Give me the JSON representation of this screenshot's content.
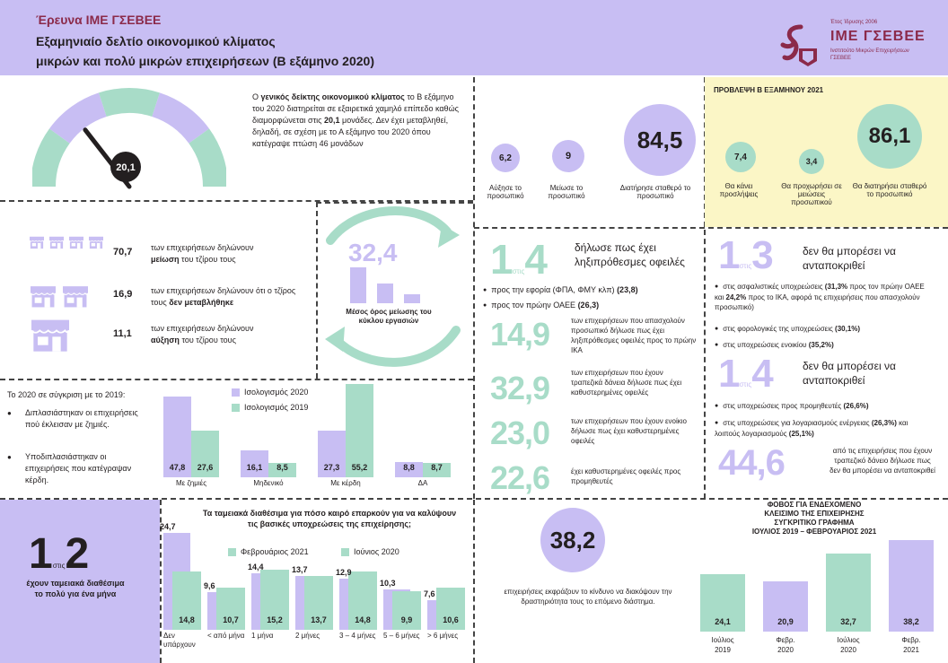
{
  "header": {
    "survey_label": "Έρευνα ΙΜΕ ΓΣΕΒΕΕ",
    "title_line1": "Εξαμηνιαίο δελτίο οικονομικού κλίματος",
    "title_line2": "μικρών και πολύ μικρών επιχειρήσεων (Β εξάμηνο 2020)",
    "logo_year": "Έτος Ίδρυσης 2006",
    "logo_name": "ΙΜΕ ΓΣΕΒΕΕ",
    "logo_sub1": "Ινστιτούτο Μικρών Επιχειρήσεων",
    "logo_sub2": "ΓΣΕΒΕΕ"
  },
  "gauge": {
    "value": "20,1",
    "level_fraction": 0.2,
    "text_part1": "Ο ",
    "text_bold1": "γενικός δείκτης οικονομικού κλίματος",
    "text_part2": " το Β εξάμηνο του 2020 διατηρείται σε εξαιρετικά χαμηλό επίπεδο καθώς διαμορφώνεται στις ",
    "text_bold2": "20,1",
    "text_part3": " μονάδες. Δεν έχει μεταβληθεί, δηλαδή, σε σχέση με το Α εξάμηνο του 2020 όπου κατέγραψε πτώση 46 μονάδων"
  },
  "employment_now": {
    "items": [
      {
        "value": "6,2",
        "label": "Αύξησε το προσωπικό"
      },
      {
        "value": "9",
        "label": "Μείωσε το προσωπικό"
      },
      {
        "value": "84,5",
        "label": "Διατήρησε σταθερό το προσωπικό"
      }
    ]
  },
  "forecast": {
    "title": "ΠΡΟΒΛΕΨΗ Β ΕΞΑΜΗΝΟΥ 2021",
    "items": [
      {
        "value": "7,4",
        "label": "Θα κάνει προσλήψεις"
      },
      {
        "value": "3,4",
        "label": "Θα προχωρήσει σε μειώσεις προσωπικού"
      },
      {
        "value": "86,1",
        "label": "Θα διατηρήσει σταθερό το προσωπικό"
      }
    ]
  },
  "turnover": {
    "rows": [
      {
        "value": "70,7",
        "text": "των επιχειρήσεων δηλώνουν",
        "bold": "μείωση",
        "after": " του τζίρου τους"
      },
      {
        "value": "16,9",
        "text": "των επιχειρήσεων δηλώνουν ότι ο τζίρος τους",
        "bold": "δεν μεταβλήθηκε",
        "after": ""
      },
      {
        "value": "11,1",
        "text": "των επιχειρήσεων δηλώνουν",
        "bold": "αύξηση",
        "after": " του τζίρου τους"
      }
    ]
  },
  "cycle": {
    "value": "32,4",
    "label": "Μέσος όρος μείωσης του κύκλου εργασιών"
  },
  "comparison": {
    "intro": "Το 2020 σε σύγκριση με το 2019:",
    "bullets": [
      "Διπλασιάστηκαν οι επιχειρήσεις πού έκλεισαν με ζημιές.",
      "Υποδιπλασιάστηκαν οι επιχειρήσεις που κατέγραψαν κέρδη."
    ]
  },
  "balance_chart": {
    "legend_2020": "Ισολογισμός 2020",
    "legend_2019": "Ισολογισμός 2019",
    "categories": [
      "Με ζημιές",
      "Μηδενικό",
      "Με κέρδη",
      "ΔΑ"
    ],
    "series": [
      {
        "name": "Ισολογισμός 2020",
        "values": [
          "47,8",
          "16,1",
          "27,3",
          "8,8"
        ],
        "nums": [
          47.8,
          16.1,
          27.3,
          8.8
        ],
        "color": "#c8bef3"
      },
      {
        "name": "Ισολογισμός 2019",
        "values": [
          "27,6",
          "8,5",
          "55,2",
          "8,7"
        ],
        "nums": [
          27.6,
          8.5,
          55.2,
          8.7
        ],
        "color": "#a8dcc8"
      }
    ]
  },
  "debts": {
    "headline_num1": "1",
    "headline_stis": "στις",
    "headline_num2": "4",
    "headline_text": "δήλωσε πως έχει ληξιπρόθεσμες οφειλές",
    "bullets": [
      {
        "text": "προς την εφορία (ΦΠΑ, ΦΜΥ κλπ) ",
        "bold": "(23,8)"
      },
      {
        "text": "προς τον πρώην ΟΑΕΕ ",
        "bold": "(26,3)"
      }
    ],
    "stats": [
      {
        "value": "14,9",
        "text": "των επιχειρήσεων που απασχολούν προσωπικό δήλωσε πως έχει ληξιπρόθεσμες οφειλές προς το πρώην ΙΚΑ"
      },
      {
        "value": "32,9",
        "text": "των επιχειρήσεων που έχουν τραπεζικά δάνεια δήλωσε πως έχει καθυστερημένες οφειλές"
      },
      {
        "value": "23,0",
        "text": "των επιχειρήσεων που έχουν ενοίκιο δήλωσε πως έχει καθυστερημένες οφειλές"
      },
      {
        "value": "22,6",
        "text": "έχει καθυστερημένες οφειλές προς προμηθευτές"
      }
    ]
  },
  "inability": {
    "block1_num1": "1",
    "block1_stis": "στις",
    "block1_num2": "3",
    "block1_text": "δεν θα μπορέσει να ανταποκριθεί",
    "block1_bullets": [
      {
        "text": "στις ασφαλιστικές υποχρεώσεις ",
        "bold": "(31,3%",
        "text2": " προς τον πρώην ΟΑΕΕ και ",
        "bold2": "24,2%",
        "text3": " προς το ΙΚΑ, αφορά τις επιχειρήσεις που απασχολούν προσωπικό)"
      },
      {
        "text": "στις φορολογικές της υποχρεώσεις ",
        "bold": "(30,1%)",
        "text2": "",
        "bold2": "",
        "text3": ""
      },
      {
        "text": "στις υποχρεώσεις ενοικίου ",
        "bold": "(35,2%)",
        "text2": "",
        "bold2": "",
        "text3": ""
      }
    ],
    "block2_num1": "1",
    "block2_stis": "στις",
    "block2_num2": "4",
    "block2_text": "δεν θα μπορέσει να ανταποκριθεί",
    "block2_bullets": [
      {
        "text": "στις υποχρεώσεις προς προμηθευτές ",
        "bold": "(26,6%)",
        "text2": "",
        "bold2": "",
        "text3": ""
      },
      {
        "text": "στις υποχρεώσεις για λογαριασμούς ενέργειας ",
        "bold": "(26,3%)",
        "text2": " και λοιπούς λογαριασμούς ",
        "bold2": "(25,1%)",
        "text3": ""
      }
    ],
    "loan_value": "44,6",
    "loan_text": "από τις επιχειρήσεις που έχουν τραπεζικό δάνειο δήλωσε πως δεν θα μπορέσει να ανταποκριθεί"
  },
  "liquidity": {
    "num1": "1",
    "stis": "στις",
    "num2": "2",
    "text": "έχουν ταμειακά διαθέσιμα το πολύ για ένα μήνα"
  },
  "cash_chart": {
    "title": "Τα ταμειακά διαθέσιμα για πόσο καιρό επαρκούν για να καλύψουν τις βασικές υποχρεώσεις της επιχείρησης;",
    "legend_feb": "Φεβρουάριος 2021",
    "legend_jun": "Ιούνιος 2020",
    "categories": [
      "Δεν υπάρχουν",
      "< από μήνα",
      "1 μήνα",
      "2 μήνες",
      "3 – 4 μήνες",
      "5 – 6 μήνες",
      "> 6 μήνες"
    ],
    "series": [
      {
        "name": "Φεβρουάριος 2021",
        "values": [
          "24,7",
          "9,6",
          "14,4",
          "13,7",
          "12,9",
          "10,3",
          "7,6"
        ],
        "nums": [
          24.7,
          9.6,
          14.4,
          13.7,
          12.9,
          10.3,
          7.6
        ],
        "color": "#c8bef3"
      },
      {
        "name": "Ιούνιος 2020",
        "values": [
          "14,8",
          "10,7",
          "15,2",
          "13,7",
          "14,8",
          "9,9",
          "10,6"
        ],
        "nums": [
          14.8,
          10.7,
          15.2,
          13.7,
          14.8,
          9.9,
          10.6
        ],
        "color": "#a8dcc8"
      }
    ]
  },
  "closure": {
    "value": "38,2",
    "text": "επιχειρήσεις εκφράζουν το κίνδυνο να διακόψουν την δραστηριότητα τους το επόμενο διάστημα."
  },
  "fear_chart": {
    "title_line1": "ΦΟΒΟΣ ΓΙΑ ΕΝΔΕΧΟΜΕΝΟ",
    "title_line2": "ΚΛΕΙΣΙΜΟ ΤΗΣ ΕΠΙΧΕΙΡΗΣΗΣ",
    "title_line3": "ΣΥΓΚΡΙΤΙΚΟ ΓΡΑΦΗΜΑ",
    "title_line4": "ΙΟΥΛΙΟΣ 2019 – ΦΕΒΡΟΥΑΡΙΟΣ 2021",
    "items": [
      {
        "value": "24,1",
        "num": 24.1,
        "label1": "Ιούλιος",
        "label2": "2019",
        "color": "#a8dcc8"
      },
      {
        "value": "20,9",
        "num": 20.9,
        "label1": "Φεβρ.",
        "label2": "2020",
        "color": "#c8bef3"
      },
      {
        "value": "32,7",
        "num": 32.7,
        "label1": "Ιούλιος",
        "label2": "2020",
        "color": "#a8dcc8"
      },
      {
        "value": "38,2",
        "num": 38.2,
        "label1": "Φεβρ.",
        "label2": "2021",
        "color": "#c8bef3"
      }
    ]
  },
  "chart_data": [
    {
      "type": "bar",
      "title": "",
      "categories": [
        "Με ζημιές",
        "Μηδενικό",
        "Με κέρδη",
        "ΔΑ"
      ],
      "series": [
        {
          "name": "Ισολογισμός 2020",
          "values": [
            47.8,
            16.1,
            27.3,
            8.8
          ]
        },
        {
          "name": "Ισολογισμός 2019",
          "values": [
            27.6,
            8.5,
            55.2,
            8.7
          ]
        }
      ],
      "legend": "top-right",
      "grid": false
    },
    {
      "type": "bar",
      "title": "Τα ταμειακά διαθέσιμα για πόσο καιρό επαρκούν για να καλύψουν τις βασικές υποχρεώσεις της επιχείρησης;",
      "categories": [
        "Δεν υπάρχουν",
        "< από μήνα",
        "1 μήνα",
        "2 μήνες",
        "3 – 4 μήνες",
        "5 – 6 μήνες",
        "> 6 μήνες"
      ],
      "series": [
        {
          "name": "Φεβρουάριος 2021",
          "values": [
            24.7,
            9.6,
            14.4,
            13.7,
            12.9,
            10.3,
            7.6
          ]
        },
        {
          "name": "Ιούνιος 2020",
          "values": [
            14.8,
            10.7,
            15.2,
            13.7,
            14.8,
            9.9,
            10.6
          ]
        }
      ],
      "legend": "top",
      "grid": false
    },
    {
      "type": "bar",
      "title": "ΦΟΒΟΣ ΓΙΑ ΕΝΔΕΧΟΜΕΝΟ ΚΛΕΙΣΙΜΟ ΤΗΣ ΕΠΙΧΕΙΡΗΣΗΣ ΣΥΓΚΡΙΤΙΚΟ ΓΡΑΦΗΜΑ ΙΟΥΛΙΟΣ 2019 – ΦΕΒΡΟΥΑΡΙΟΣ 2021",
      "categories": [
        "Ιούλιος 2019",
        "Φεβρ. 2020",
        "Ιούλιος 2020",
        "Φεβρ. 2021"
      ],
      "values": [
        24.1,
        20.9,
        32.7,
        38.2
      ],
      "grid": false
    }
  ]
}
